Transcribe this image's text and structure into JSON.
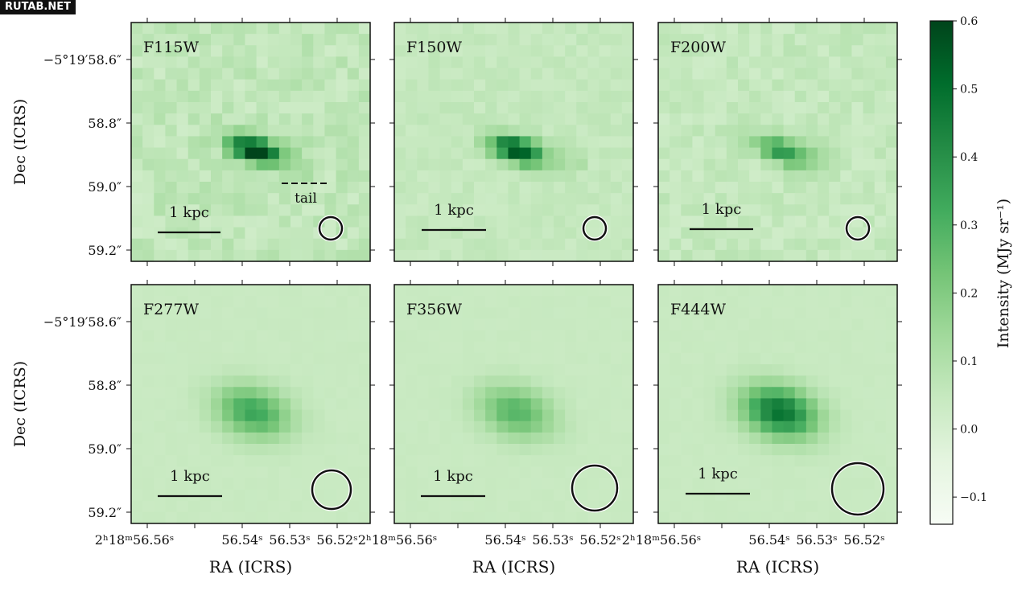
{
  "watermark": "RUTAB.NET",
  "chart_data": {
    "type": "heatmap",
    "colormap": "Greens",
    "colorbar": {
      "label": "Intensity (MJy sr⁻¹)",
      "range": [
        -0.14,
        0.6
      ],
      "ticks": [
        0.6,
        0.5,
        0.4,
        0.3,
        0.2,
        0.1,
        0.0,
        -0.1
      ],
      "tick_labels": [
        "0.6",
        "0.5",
        "0.4",
        "0.3",
        "0.2",
        "0.1",
        "0.0",
        "−0.1"
      ]
    },
    "ylabel": "Dec (ICRS)",
    "xlabel": "RA (ICRS)",
    "y_tick_labels": [
      "−5°19′58.6″",
      "58.8″",
      "59.0″",
      "59.2″"
    ],
    "x_tick_labels": [
      "2ʰ18ᵐ56.56ˢ",
      "56.54ˢ",
      "56.53ˢ",
      "56.52ˢ"
    ],
    "scale_bar_label": "1 kpc",
    "annotation": "tail",
    "panels": [
      {
        "filter": "F115W",
        "peak": 0.6,
        "background": 0.06,
        "noise": 0.04,
        "extended": false
      },
      {
        "filter": "F150W",
        "peak": 0.55,
        "background": 0.05,
        "noise": 0.02,
        "extended": false
      },
      {
        "filter": "F200W",
        "peak": 0.33,
        "background": 0.05,
        "noise": 0.03,
        "extended": false
      },
      {
        "filter": "F277W",
        "peak": 0.3,
        "background": 0.04,
        "noise": 0.005,
        "extended": true
      },
      {
        "filter": "F356W",
        "peak": 0.25,
        "background": 0.04,
        "noise": 0.005,
        "extended": true
      },
      {
        "filter": "F444W",
        "peak": 0.45,
        "background": 0.04,
        "noise": 0.005,
        "extended": true
      }
    ]
  }
}
